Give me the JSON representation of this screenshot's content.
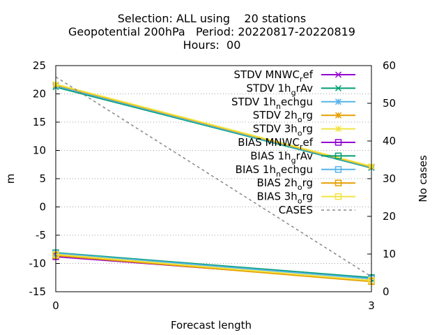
{
  "title_lines": [
    "Selection: ALL using    20 stations",
    "Geopotential 200hPa   Period: 20220817-20220819",
    "Hours:  00"
  ],
  "chart_data": {
    "type": "line",
    "xlabel": "Forecast length",
    "ylabel": "m",
    "y2label": "No cases",
    "xlim": [
      0,
      3
    ],
    "ylim": [
      -15,
      25
    ],
    "y2lim": [
      0,
      60
    ],
    "xticks": [
      "0",
      "3"
    ],
    "yticks": [
      "-15",
      "-10",
      "-5",
      "0",
      "5",
      "10",
      "15",
      "20",
      "25"
    ],
    "y2ticks": [
      "0",
      "10",
      "20",
      "30",
      "40",
      "50",
      "60"
    ],
    "grid": true,
    "legend_position": "top-right",
    "series": [
      {
        "name": "STDV MNWC_ref",
        "label_main": "STDV MNWC",
        "label_sub": "r",
        "label_tail": "ef",
        "color": "#9400d3",
        "marker": "x",
        "axis": "y",
        "x": [
          0,
          3
        ],
        "y": [
          21.4,
          7.0
        ]
      },
      {
        "name": "STDV 1h_grAv",
        "label_main": "STDV 1h",
        "label_sub": "g",
        "label_tail": "rAv",
        "color": "#009e73",
        "marker": "x",
        "axis": "y",
        "x": [
          0,
          3
        ],
        "y": [
          21.2,
          6.9
        ]
      },
      {
        "name": "STDV 1h_nechgu",
        "label_main": "STDV 1h",
        "label_sub": "n",
        "label_tail": "echgu",
        "color": "#56b4e9",
        "marker": "star",
        "axis": "y",
        "x": [
          0,
          3
        ],
        "y": [
          21.4,
          7.0
        ]
      },
      {
        "name": "STDV 2h_org",
        "label_main": "STDV 2h",
        "label_sub": "o",
        "label_tail": "rg",
        "color": "#e69f00",
        "marker": "star",
        "axis": "y",
        "x": [
          0,
          3
        ],
        "y": [
          21.6,
          7.1
        ]
      },
      {
        "name": "STDV 3h_org",
        "label_main": "STDV 3h",
        "label_sub": "o",
        "label_tail": "rg",
        "color": "#f0e442",
        "marker": "star",
        "axis": "y",
        "x": [
          0,
          3
        ],
        "y": [
          21.7,
          7.2
        ]
      },
      {
        "name": "BIAS MNWC_ref",
        "label_main": "BIAS MNWC",
        "label_sub": "r",
        "label_tail": "ef",
        "color": "#9400d3",
        "marker": "square",
        "axis": "y",
        "x": [
          0,
          3
        ],
        "y": [
          -8.8,
          -13.0
        ]
      },
      {
        "name": "BIAS 1h_grAv",
        "label_main": "BIAS 1h",
        "label_sub": "g",
        "label_tail": "rAv",
        "color": "#009e73",
        "marker": "square",
        "axis": "y",
        "x": [
          0,
          3
        ],
        "y": [
          -8.1,
          -12.5
        ]
      },
      {
        "name": "BIAS 1h_nechgu",
        "label_main": "BIAS 1h",
        "label_sub": "n",
        "label_tail": "echgu",
        "color": "#56b4e9",
        "marker": "square",
        "axis": "y",
        "x": [
          0,
          3
        ],
        "y": [
          -8.2,
          -12.7
        ]
      },
      {
        "name": "BIAS 2h_org",
        "label_main": "BIAS 2h",
        "label_sub": "o",
        "label_tail": "rg",
        "color": "#e69f00",
        "marker": "square",
        "axis": "y",
        "x": [
          0,
          3
        ],
        "y": [
          -8.6,
          -13.2
        ]
      },
      {
        "name": "BIAS 3h_org",
        "label_main": "BIAS 3h",
        "label_sub": "o",
        "label_tail": "rg",
        "color": "#f0e442",
        "marker": "square",
        "axis": "y",
        "x": [
          0,
          3
        ],
        "y": [
          -8.4,
          -13.0
        ]
      },
      {
        "name": "CASES",
        "label_main": "CASES",
        "label_sub": "",
        "label_tail": "",
        "color": "#888888",
        "marker": "none",
        "dashed": true,
        "axis": "y2",
        "x": [
          0,
          3
        ],
        "y": [
          57,
          4
        ]
      }
    ]
  }
}
